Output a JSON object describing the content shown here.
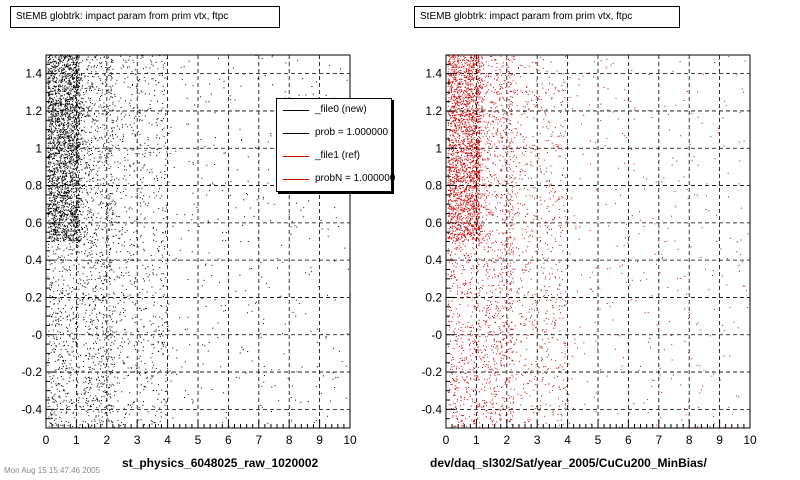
{
  "chart_data": [
    {
      "type": "scatter",
      "title": "StEMB globtrk: impact param from prim vtx, ftpc",
      "xlabel": "st_physics_6048025_raw_1020002",
      "ylabel": "",
      "xlim": [
        0,
        10
      ],
      "ylim": [
        -0.5,
        1.5
      ],
      "x_ticks": [
        "0",
        "1",
        "2",
        "3",
        "4",
        "5",
        "6",
        "7",
        "8",
        "9",
        "10"
      ],
      "y_ticks": [
        "-0.4",
        "-0.2",
        "-0",
        "0.2",
        "0.4",
        "0.6",
        "0.8",
        "1",
        "1.2",
        "1.4"
      ],
      "grid": true,
      "point_color": "#000000",
      "legend": {
        "placement": "top-right",
        "entries": [
          {
            "label": "_file0 (new)",
            "color": "#000000"
          },
          {
            "label": "prob = 1.000000",
            "color": "#000000"
          },
          {
            "label": "_file1 (ref)",
            "color": "#cc0000"
          },
          {
            "label": "probN = 1.000000",
            "color": "#cc0000"
          }
        ]
      }
    },
    {
      "type": "scatter",
      "title": "StEMB globtrk: impact param from prim vtx, ftpc",
      "xlabel": "dev/daq_sl302/Sat/year_2005/CuCu200_MinBias/",
      "ylabel": "",
      "xlim": [
        0,
        10
      ],
      "ylim": [
        -0.5,
        1.5
      ],
      "x_ticks": [
        "0",
        "1",
        "2",
        "3",
        "4",
        "5",
        "6",
        "7",
        "8",
        "9",
        "10"
      ],
      "y_ticks": [
        "-0.4",
        "-0.2",
        "-0",
        "0.2",
        "0.4",
        "0.6",
        "0.8",
        "1",
        "1.2",
        "1.4"
      ],
      "grid": true,
      "point_color": "#cc0000"
    }
  ],
  "footer": "Mon Aug 15 15:47:46 2005"
}
